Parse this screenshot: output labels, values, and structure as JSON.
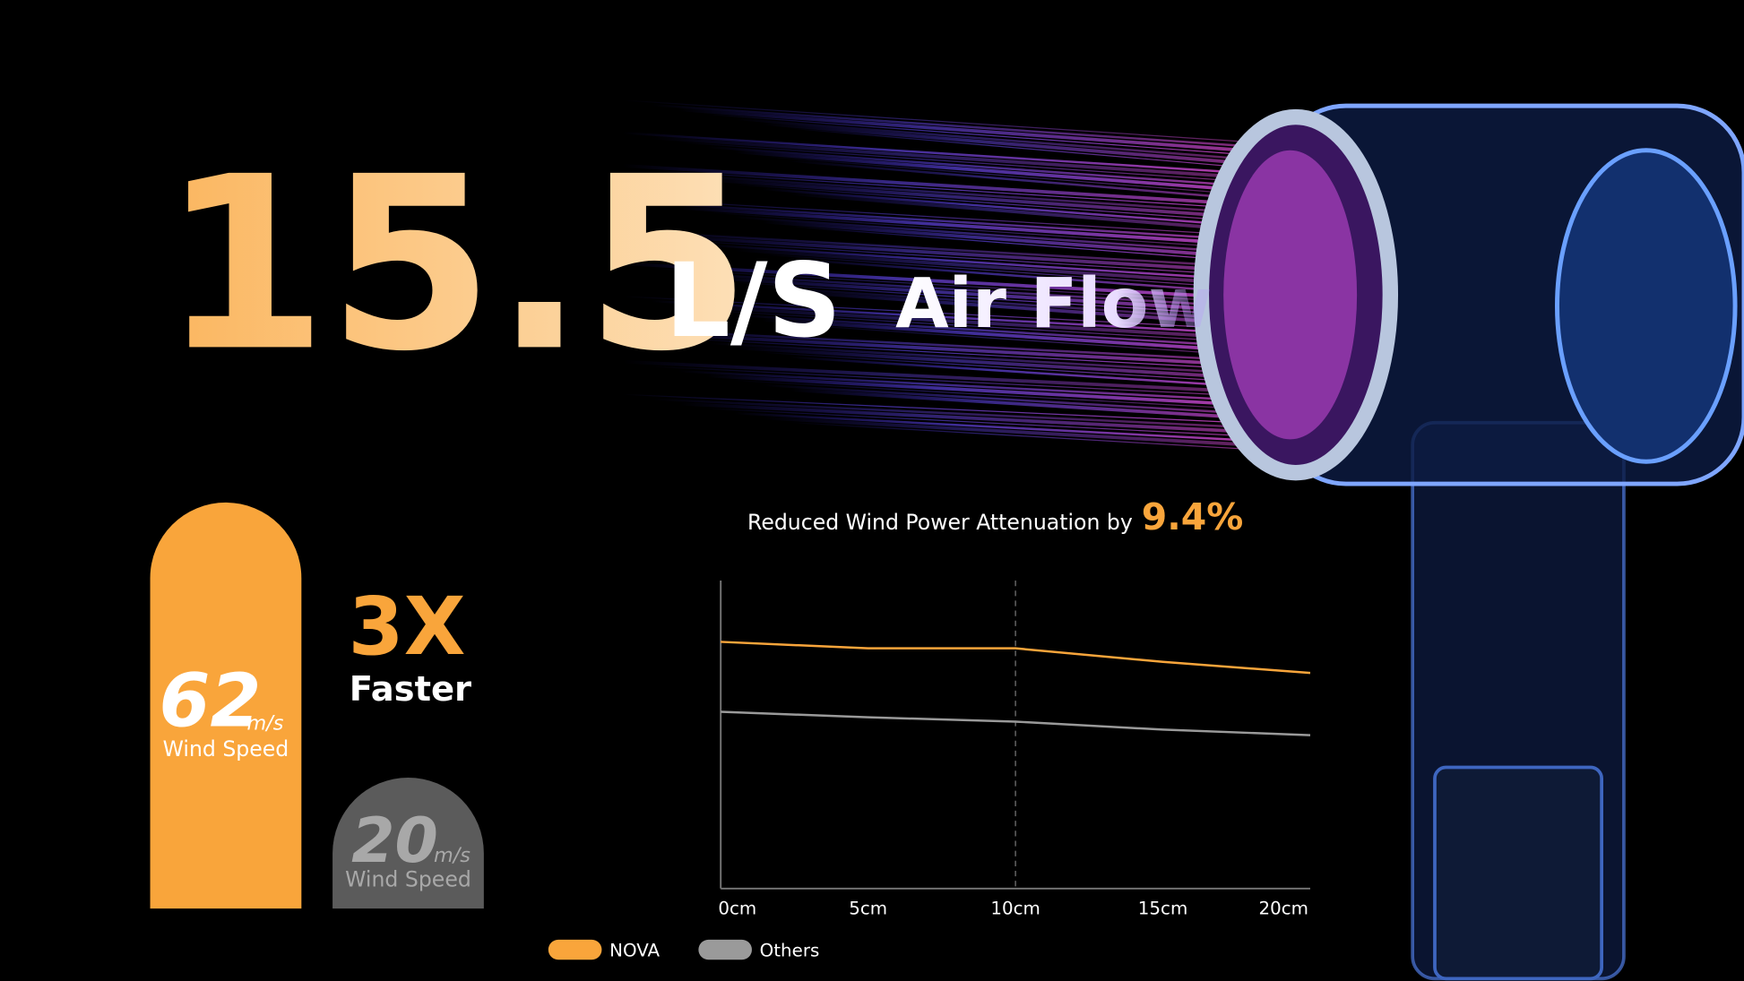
{
  "headline": {
    "number": "15.5",
    "unit": "L/S",
    "label": "Air Flow"
  },
  "comparison": {
    "multiplier": "3X",
    "label": "Faster"
  },
  "chart_data": [
    {
      "type": "bar",
      "categories": [
        "Wind Speed",
        "Wind Speed"
      ],
      "values": [
        62,
        20
      ],
      "unit": "m/s",
      "colors": [
        "#f9a53b",
        "#5b5b5b"
      ]
    },
    {
      "type": "line",
      "title": "Reduced Wind Power Attenuation by",
      "highlight": "9.4%",
      "categories": [
        "0cm",
        "5cm",
        "10cm",
        "15cm",
        "20cm"
      ],
      "series": [
        {
          "name": "NOVA",
          "color": "#f9a53b",
          "values": [
            80.1,
            78.0,
            78.0,
            73.6,
            70.0
          ]
        },
        {
          "name": "Others",
          "color": "#9a9a9a",
          "values": [
            57.4,
            55.6,
            54.2,
            51.6,
            49.8
          ]
        }
      ],
      "ylim": [
        0,
        100
      ],
      "legend": "bottom-left"
    }
  ]
}
